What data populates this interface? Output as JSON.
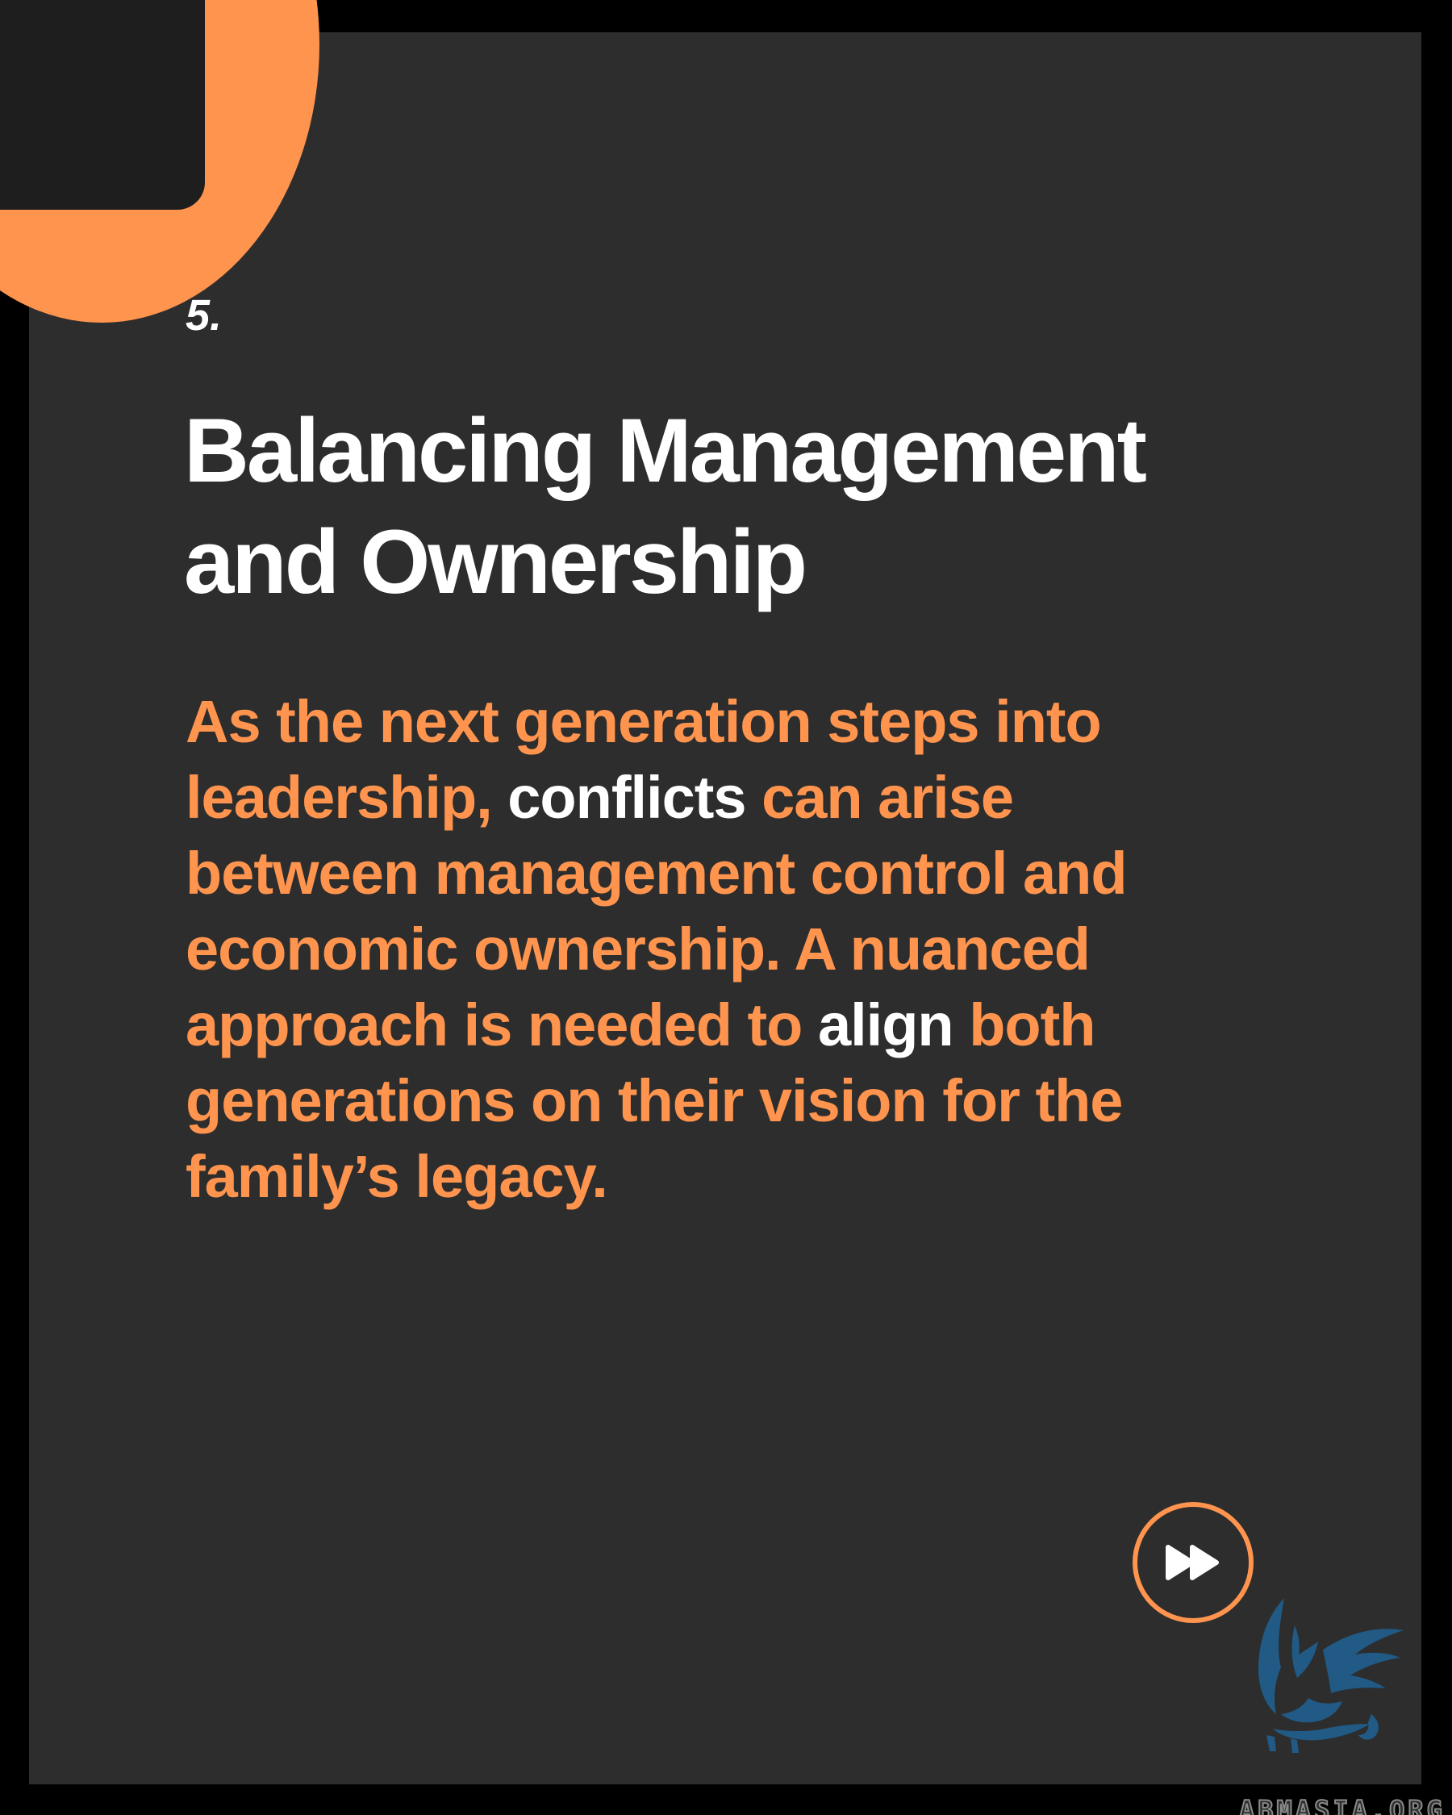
{
  "slide": {
    "number": "5.",
    "title_line1": "Balancing Management",
    "title_line2": "and Ownership",
    "body": {
      "p1": "As the next generation steps into leadership, ",
      "hl1": "conflicts",
      "p2": " can arise between management control and economic ownership. A nuanced approach is needed to ",
      "hl2": "align",
      "p3": " both generations on their vision for the family’s legacy."
    }
  },
  "navigation": {
    "next_icon": "fast-forward-icon"
  },
  "watermark": {
    "logo_icon": "griffin-logo-icon",
    "text": "ABMASIA.ORG"
  },
  "colors": {
    "background": "#2d2d2d",
    "frame": "#000000",
    "accent": "#ff944e",
    "text": "#ffffff",
    "watermark_blue": "#1f5f8f"
  }
}
